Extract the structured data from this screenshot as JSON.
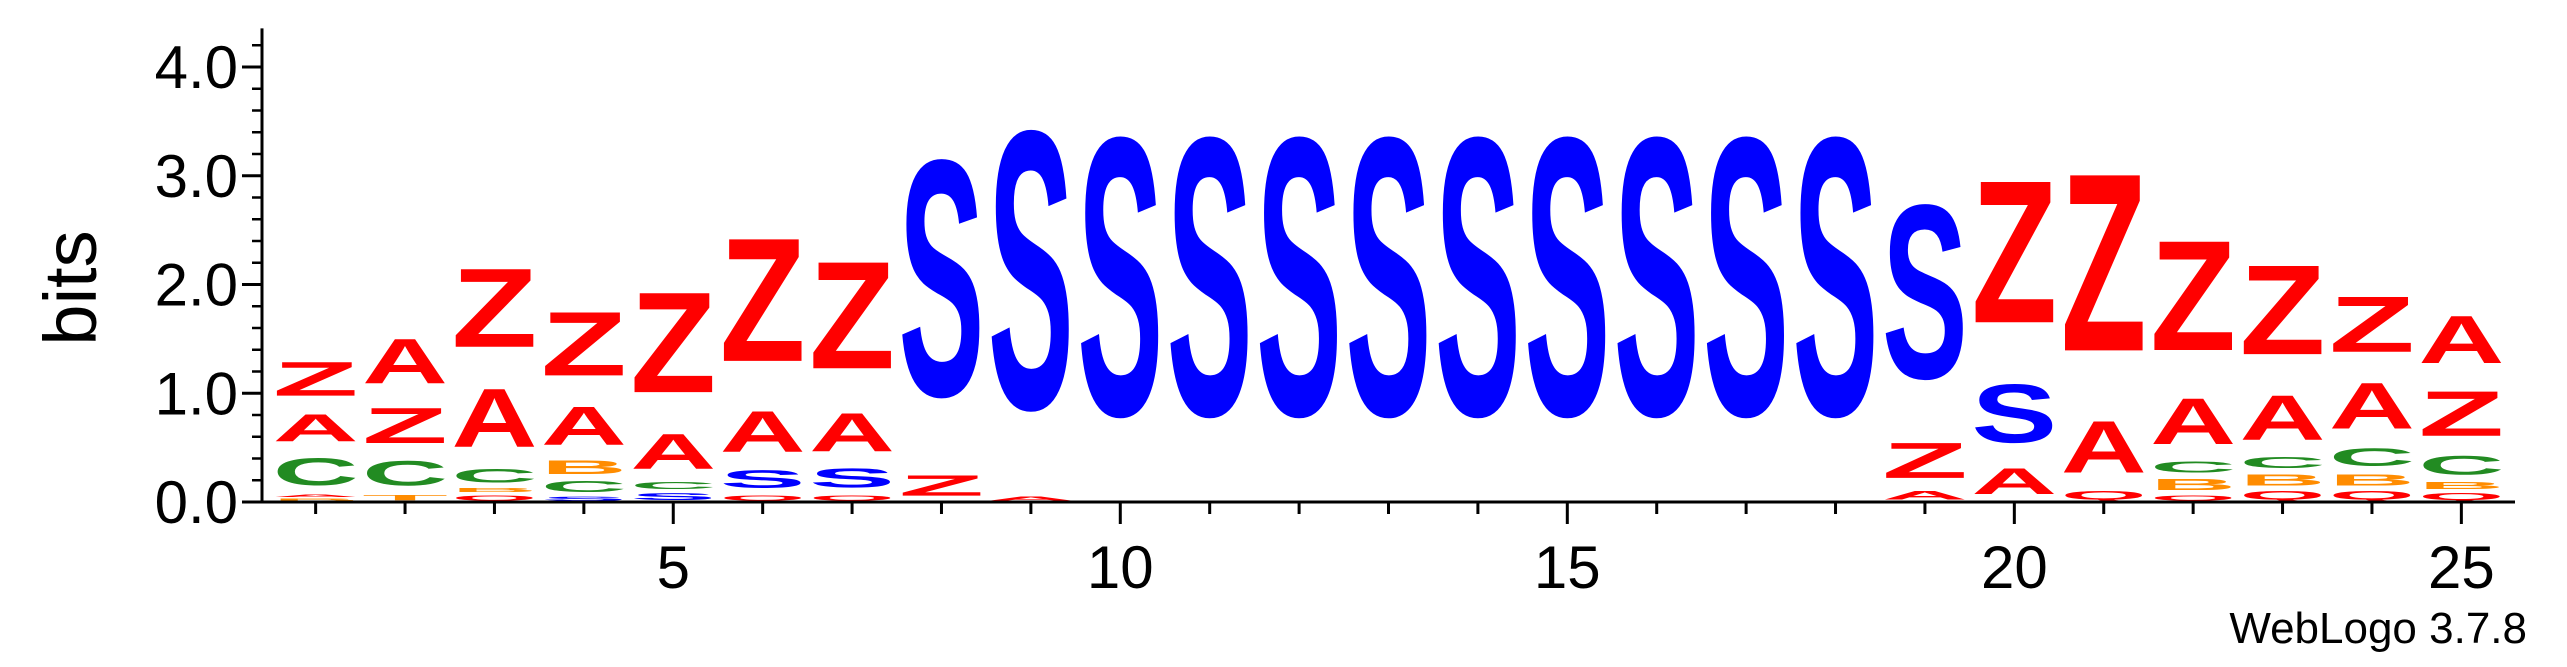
{
  "chart_data": {
    "type": "sequence-logo",
    "ylabel": "bits",
    "ylim": [
      0,
      4.3
    ],
    "y_ticks": [
      "0.0",
      "1.0",
      "2.0",
      "3.0",
      "4.0"
    ],
    "y_tick_values": [
      0,
      1,
      2,
      3,
      4
    ],
    "x_ticks": [
      5,
      10,
      15,
      20,
      25
    ],
    "x_range": [
      0.4,
      25.6
    ],
    "colors": {
      "Z": "#ff0000",
      "A": "#ff0000",
      "S": "#0000ff",
      "C": "#228b22",
      "B": "#ff8c00",
      "Q": "#ff0000",
      "T": "#ff8c00"
    },
    "positions": [
      {
        "pos": 1,
        "stack": [
          [
            "B",
            0.04
          ],
          [
            "A",
            0.04
          ],
          [
            "C",
            0.4
          ],
          [
            "A",
            0.4
          ],
          [
            "Z",
            0.5
          ]
        ]
      },
      {
        "pos": 2,
        "stack": [
          [
            "T",
            0.08
          ],
          [
            "C",
            0.36
          ],
          [
            "Z",
            0.52
          ],
          [
            "A",
            0.66
          ]
        ]
      },
      {
        "pos": 3,
        "stack": [
          [
            "Q",
            0.08
          ],
          [
            "B",
            0.06
          ],
          [
            "C",
            0.2
          ],
          [
            "A",
            0.86
          ],
          [
            "Z",
            1.16
          ]
        ]
      },
      {
        "pos": 4,
        "stack": [
          [
            "S",
            0.06
          ],
          [
            "C",
            0.16
          ],
          [
            "B",
            0.2
          ],
          [
            "A",
            0.56
          ],
          [
            "Z",
            0.94
          ]
        ]
      },
      {
        "pos": 5,
        "stack": [
          [
            "S",
            0.1
          ],
          [
            "C",
            0.1
          ],
          [
            "A",
            0.52
          ],
          [
            "Z",
            1.48
          ]
        ]
      },
      {
        "pos": 6,
        "stack": [
          [
            "Q",
            0.08
          ],
          [
            "S",
            0.26
          ],
          [
            "A",
            0.6
          ],
          [
            "Z",
            1.82
          ]
        ]
      },
      {
        "pos": 7,
        "stack": [
          [
            "Q",
            0.08
          ],
          [
            "S",
            0.28
          ],
          [
            "A",
            0.56
          ],
          [
            "Z",
            1.58
          ]
        ]
      },
      {
        "pos": 8,
        "stack": [
          [
            "Z",
            0.3
          ],
          [
            "S",
            3.48
          ]
        ]
      },
      {
        "pos": 9,
        "stack": [
          [
            "A",
            0.06
          ],
          [
            "S",
            4.1
          ]
        ]
      },
      {
        "pos": 10,
        "stack": [
          [
            "S",
            4.1
          ]
        ]
      },
      {
        "pos": 11,
        "stack": [
          [
            "S",
            4.1
          ]
        ]
      },
      {
        "pos": 12,
        "stack": [
          [
            "S",
            4.1
          ]
        ]
      },
      {
        "pos": 13,
        "stack": [
          [
            "S",
            4.1
          ]
        ]
      },
      {
        "pos": 14,
        "stack": [
          [
            "S",
            4.1
          ]
        ]
      },
      {
        "pos": 15,
        "stack": [
          [
            "S",
            4.1
          ]
        ]
      },
      {
        "pos": 16,
        "stack": [
          [
            "S",
            4.1
          ]
        ]
      },
      {
        "pos": 17,
        "stack": [
          [
            "S",
            4.1
          ]
        ]
      },
      {
        "pos": 18,
        "stack": [
          [
            "S",
            4.1
          ]
        ]
      },
      {
        "pos": 19,
        "stack": [
          [
            "A",
            0.12
          ],
          [
            "Z",
            0.52
          ],
          [
            "S",
            2.56
          ]
        ]
      },
      {
        "pos": 20,
        "stack": [
          [
            "A",
            0.38
          ],
          [
            "S",
            0.86
          ],
          [
            "Z",
            2.1
          ]
        ]
      },
      {
        "pos": 21,
        "stack": [
          [
            "Q",
            0.12
          ],
          [
            "A",
            0.76
          ],
          [
            "Z",
            2.62
          ]
        ]
      },
      {
        "pos": 22,
        "stack": [
          [
            "Q",
            0.08
          ],
          [
            "B",
            0.16
          ],
          [
            "C",
            0.16
          ],
          [
            "A",
            0.68
          ],
          [
            "Z",
            1.62
          ]
        ]
      },
      {
        "pos": 23,
        "stack": [
          [
            "Q",
            0.12
          ],
          [
            "B",
            0.16
          ],
          [
            "C",
            0.16
          ],
          [
            "A",
            0.66
          ],
          [
            "Z",
            1.32
          ]
        ]
      },
      {
        "pos": 24,
        "stack": [
          [
            "Q",
            0.12
          ],
          [
            "B",
            0.16
          ],
          [
            "C",
            0.26
          ],
          [
            "A",
            0.68
          ],
          [
            "Z",
            0.82
          ]
        ]
      },
      {
        "pos": 25,
        "stack": [
          [
            "Q",
            0.1
          ],
          [
            "B",
            0.1
          ],
          [
            "C",
            0.28
          ],
          [
            "Z",
            0.66
          ],
          [
            "A",
            0.7
          ]
        ]
      }
    ]
  },
  "credit": "WebLogo 3.7.8"
}
